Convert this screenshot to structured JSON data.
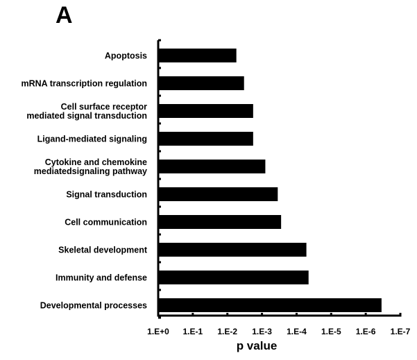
{
  "panel_label": "A",
  "chart_data": {
    "type": "bar",
    "orientation": "horizontal",
    "title": "",
    "xlabel": "p value",
    "ylabel": "",
    "x_scale": "log-reversed",
    "xlim": [
      1,
      1e-07
    ],
    "x_ticks": [
      1,
      0.1,
      0.01,
      0.001,
      0.0001,
      1e-05,
      1e-06,
      1e-07
    ],
    "x_tick_labels": [
      "1.E+0",
      "1.E-1",
      "1.E-2",
      "1.E-3",
      "1.E-4",
      "1.E-5",
      "1.E-6",
      "1.E-7"
    ],
    "categories": [
      [
        "Apoptosis"
      ],
      [
        "mRNA transcription regulation"
      ],
      [
        "Cell surface receptor",
        "mediated signal transduction"
      ],
      [
        "Ligand-mediated signaling"
      ],
      [
        "Cytokine and chemokine",
        "mediatedsignaling pathway"
      ],
      [
        "Signal transduction"
      ],
      [
        "Cell communication"
      ],
      [
        "Skeletal development"
      ],
      [
        "Immunity and defense"
      ],
      [
        "Developmental processes"
      ]
    ],
    "values": [
      0.0055,
      0.0033,
      0.0018,
      0.0018,
      0.0008,
      0.00035,
      0.00028,
      5.2e-05,
      4.5e-05,
      3.5e-07
    ],
    "grid": false,
    "legend": "none",
    "bar_color": "#000000"
  }
}
